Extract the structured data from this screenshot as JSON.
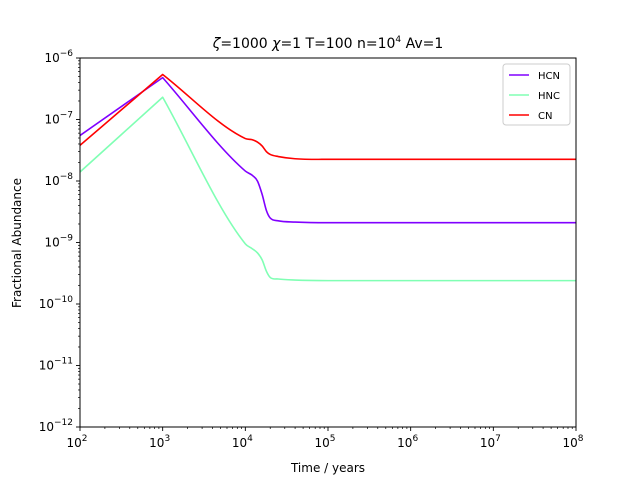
{
  "chart_data": {
    "type": "line",
    "title": "ζ=1000 χ=1 T=100 n=10⁴  Av=1",
    "title_parts": {
      "zeta": "ζ",
      "zeta_value": "=1000 ",
      "chi": "χ",
      "rest": "=1 T=100 n=10",
      "n_exp": "4",
      "av": "  Av=1"
    },
    "xlabel": "Time / years",
    "ylabel": "Fractional Abundance",
    "xscale": "log",
    "yscale": "log",
    "xlim": [
      100,
      100000000
    ],
    "ylim": [
      1e-12,
      1e-06
    ],
    "grid": false,
    "legend_position": "top-right",
    "x_ticks": [
      {
        "value": 100,
        "base": "10",
        "exp": "2"
      },
      {
        "value": 1000,
        "base": "10",
        "exp": "3"
      },
      {
        "value": 10000,
        "base": "10",
        "exp": "4"
      },
      {
        "value": 100000,
        "base": "10",
        "exp": "5"
      },
      {
        "value": 1000000,
        "base": "10",
        "exp": "6"
      },
      {
        "value": 10000000,
        "base": "10",
        "exp": "7"
      },
      {
        "value": 100000000,
        "base": "10",
        "exp": "8"
      }
    ],
    "y_ticks": [
      {
        "value": 1e-12,
        "base": "10",
        "exp": "−12"
      },
      {
        "value": 1e-11,
        "base": "10",
        "exp": "−11"
      },
      {
        "value": 1e-10,
        "base": "10",
        "exp": "−10"
      },
      {
        "value": 1e-09,
        "base": "10",
        "exp": "−9"
      },
      {
        "value": 1e-08,
        "base": "10",
        "exp": "−8"
      },
      {
        "value": 1e-07,
        "base": "10",
        "exp": "−7"
      },
      {
        "value": 1e-06,
        "base": "10",
        "exp": "−6"
      }
    ],
    "series": [
      {
        "name": "HCN",
        "color": "#8000ff",
        "points": [
          [
            100,
            5.5e-08
          ],
          [
            1000,
            4.8e-07
          ],
          [
            10000,
            1.45e-08
          ],
          [
            12000,
            1.25e-08
          ],
          [
            14000,
            1e-08
          ],
          [
            16000,
            6e-09
          ],
          [
            18000,
            3.3e-09
          ],
          [
            20000,
            2.5e-09
          ],
          [
            25000,
            2.25e-09
          ],
          [
            40000,
            2.15e-09
          ],
          [
            100000,
            2.1e-09
          ],
          [
            1000000,
            2.1e-09
          ],
          [
            100000000,
            2.1e-09
          ]
        ]
      },
      {
        "name": "HNC",
        "color": "#80ffb4",
        "points": [
          [
            100,
            1.4e-08
          ],
          [
            1000,
            2.3e-07
          ],
          [
            10000,
            9.5e-10
          ],
          [
            12000,
            8e-10
          ],
          [
            14000,
            6.8e-10
          ],
          [
            16000,
            5.2e-10
          ],
          [
            18000,
            3.4e-10
          ],
          [
            20000,
            2.7e-10
          ],
          [
            25000,
            2.55e-10
          ],
          [
            40000,
            2.45e-10
          ],
          [
            100000,
            2.4e-10
          ],
          [
            1000000,
            2.4e-10
          ],
          [
            100000000,
            2.4e-10
          ]
        ]
      },
      {
        "name": "CN",
        "color": "#ff0000",
        "points": [
          [
            100,
            3.8e-08
          ],
          [
            1000,
            5.4e-07
          ],
          [
            10000,
            4.9e-08
          ],
          [
            12000,
            4.7e-08
          ],
          [
            14000,
            4.3e-08
          ],
          [
            16000,
            3.7e-08
          ],
          [
            18000,
            3e-08
          ],
          [
            20000,
            2.7e-08
          ],
          [
            25000,
            2.5e-08
          ],
          [
            40000,
            2.3e-08
          ],
          [
            100000,
            2.25e-08
          ],
          [
            1000000,
            2.25e-08
          ],
          [
            100000000,
            2.25e-08
          ]
        ]
      }
    ]
  }
}
